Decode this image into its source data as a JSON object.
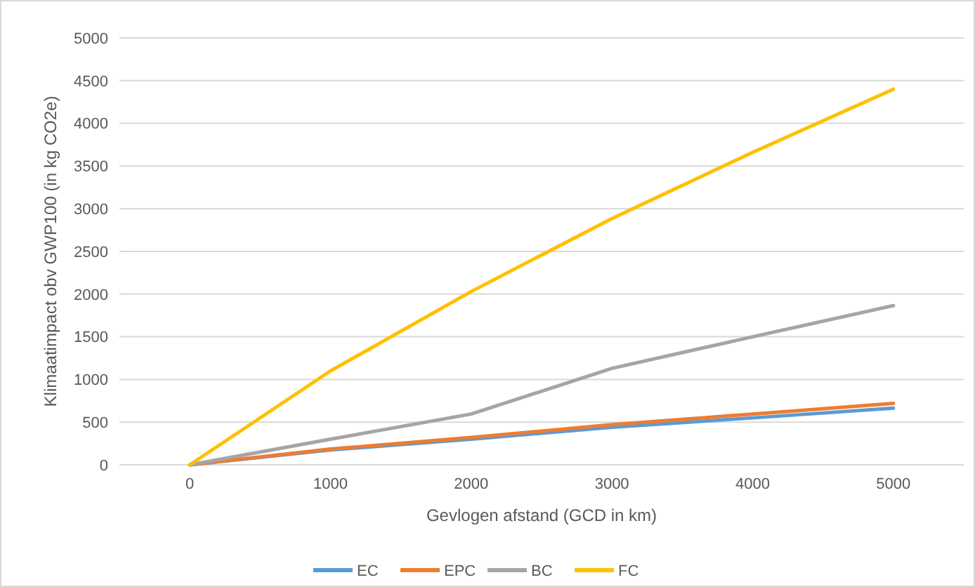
{
  "chart_data": {
    "type": "line",
    "xlabel": "Gevlogen afstand (GCD in km)",
    "ylabel": "Klimaatimpact obv GWP100 (in kg CO2e)",
    "categories": [
      "0",
      "1000",
      "2000",
      "3000",
      "4000",
      "5000"
    ],
    "series": [
      {
        "name": "EC",
        "color": "#5b9bd5",
        "values": [
          0,
          175,
          300,
          440,
          550,
          665
        ]
      },
      {
        "name": "EPC",
        "color": "#ed7d31",
        "values": [
          0,
          185,
          320,
          470,
          595,
          720
        ]
      },
      {
        "name": "BC",
        "color": "#a5a5a5",
        "values": [
          0,
          300,
          595,
          1130,
          1500,
          1865
        ]
      },
      {
        "name": "FC",
        "color": "#ffc000",
        "values": [
          0,
          1100,
          2030,
          2885,
          3660,
          4400
        ]
      }
    ],
    "ylim": [
      0,
      5000
    ],
    "yticks": [
      0,
      500,
      1000,
      1500,
      2000,
      2500,
      3000,
      3500,
      4000,
      4500,
      5000
    ],
    "grid": "y",
    "legend": "bottom",
    "marker": "none",
    "line_style": "solid"
  }
}
